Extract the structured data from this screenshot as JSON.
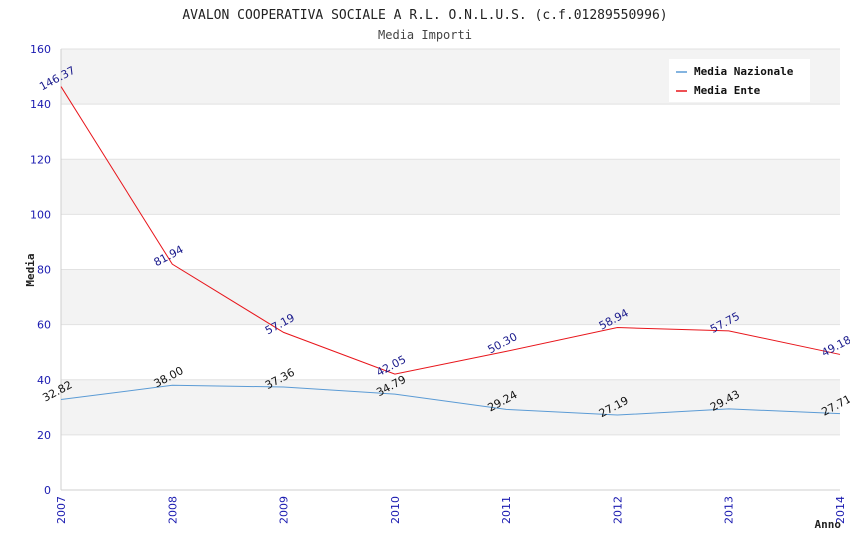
{
  "chart_data": {
    "type": "line",
    "title": "AVALON COOPERATIVA SOCIALE A R.L. O.N.L.U.S. (c.f.01289550996)",
    "subtitle": "Media Importi",
    "xlabel": "Anno",
    "ylabel": "Media",
    "ylim": [
      0,
      160
    ],
    "yticks": [
      "0",
      "20",
      "40",
      "60",
      "80",
      "100",
      "120",
      "140",
      "160"
    ],
    "categories": [
      "2007",
      "2008",
      "2009",
      "2010",
      "2011",
      "2012",
      "2013",
      "2014"
    ],
    "legend_position": "top-right",
    "series": [
      {
        "name": "Media Nazionale",
        "color": "#5b9bd5",
        "label_color": "#111111",
        "values": [
          32.82,
          38.0,
          37.36,
          34.79,
          29.24,
          27.19,
          29.43,
          27.71
        ],
        "labels": [
          "32.82",
          "38.00",
          "37.36",
          "34.79",
          "29.24",
          "27.19",
          "29.43",
          "27.71"
        ]
      },
      {
        "name": "Media Ente",
        "color": "#e8151b",
        "label_color": "#1a1a8c",
        "values": [
          146.37,
          81.94,
          57.19,
          42.05,
          50.3,
          58.94,
          57.75,
          49.18
        ],
        "labels": [
          "146.37",
          "81.94",
          "57.19",
          "42.05",
          "50.30",
          "58.94",
          "57.75",
          "49.18"
        ]
      }
    ]
  }
}
